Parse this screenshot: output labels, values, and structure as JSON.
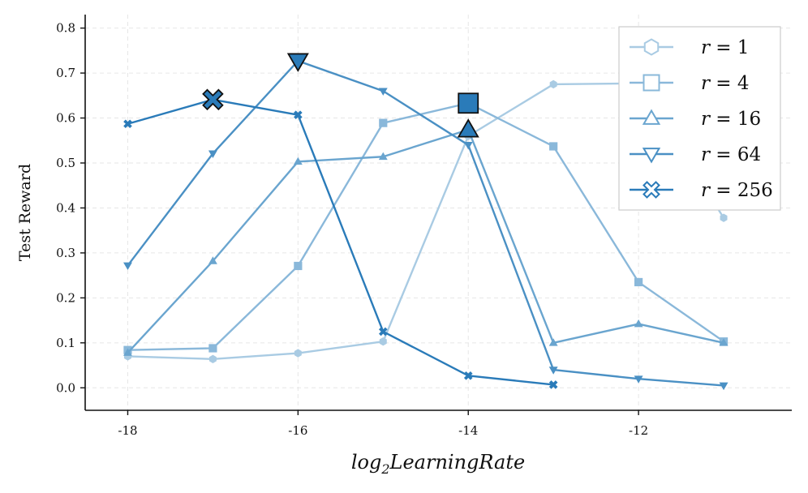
{
  "chart_data": {
    "type": "line",
    "xlabel_base": "log",
    "xlabel_sub": "2",
    "xlabel_rest": "LearningRate",
    "ylabel": "Test Reward",
    "xlim": [
      -18.5,
      -10.2
    ],
    "ylim": [
      -0.05,
      0.83
    ],
    "xticks": [
      -18,
      -16,
      -14,
      -12
    ],
    "xtick_labels": [
      "-18",
      "-16",
      "-14",
      "-12"
    ],
    "yticks": [
      0.0,
      0.1,
      0.2,
      0.3,
      0.4,
      0.5,
      0.6,
      0.7,
      0.8
    ],
    "ytick_labels": [
      "0.0",
      "0.1",
      "0.2",
      "0.3",
      "0.4",
      "0.5",
      "0.6",
      "0.7",
      "0.8"
    ],
    "grid": true,
    "legend_position": "top-right",
    "series": [
      {
        "name": "r = 1",
        "label_var": "r",
        "label_eq": " = ",
        "label_val": "1",
        "marker": "hexagon",
        "color": "#a9cbe3",
        "x": [
          -18,
          -17,
          -16,
          -15,
          -14,
          -13,
          -12,
          -11
        ],
        "y": [
          0.07,
          0.064,
          0.077,
          0.103,
          0.56,
          0.675,
          0.677,
          0.378
        ],
        "best_index": 6
      },
      {
        "name": "r = 4",
        "label_var": "r",
        "label_eq": " = ",
        "label_val": "4",
        "marker": "square",
        "color": "#8ab8da",
        "x": [
          -18,
          -17,
          -16,
          -15,
          -14,
          -13,
          -12,
          -11
        ],
        "y": [
          0.084,
          0.088,
          0.271,
          0.589,
          0.633,
          0.537,
          0.235,
          0.103
        ],
        "best_index": 4
      },
      {
        "name": "r = 16",
        "label_var": "r",
        "label_eq": " = ",
        "label_val": "16",
        "marker": "triangle-up",
        "color": "#6aa5cf",
        "x": [
          -18,
          -17,
          -16,
          -15,
          -14,
          -13,
          -12,
          -11
        ],
        "y": [
          0.078,
          0.282,
          0.503,
          0.514,
          0.574,
          0.1,
          0.142,
          0.1
        ],
        "best_index": 4
      },
      {
        "name": "r = 64",
        "label_var": "r",
        "label_eq": " = ",
        "label_val": "64",
        "marker": "triangle-down",
        "color": "#4a90c4",
        "x": [
          -18,
          -17,
          -16,
          -15,
          -14,
          -13,
          -12,
          -11
        ],
        "y": [
          0.272,
          0.521,
          0.727,
          0.66,
          0.54,
          0.04,
          0.02,
          0.005
        ],
        "best_index": 2
      },
      {
        "name": "r = 256",
        "label_var": "r",
        "label_eq": " = ",
        "label_val": "256",
        "marker": "x-filled",
        "color": "#2a7bb9",
        "x": [
          -18,
          -17,
          -16,
          -15,
          -14,
          -13
        ],
        "y": [
          0.587,
          0.641,
          0.607,
          0.125,
          0.027,
          0.007
        ],
        "best_index": 1
      }
    ]
  }
}
